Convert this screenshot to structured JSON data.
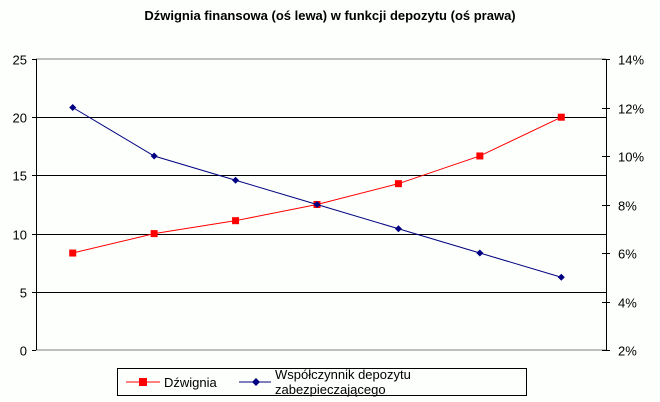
{
  "chart_data": {
    "type": "line",
    "title": "Dźwignia finansowa (oś lewa) w funkcji depozytu (oś prawa)",
    "xlabel": "",
    "ylabel": "",
    "x": [
      1,
      2,
      3,
      4,
      5,
      6,
      7
    ],
    "y_left": {
      "ylim": [
        0,
        25
      ],
      "ticks": [
        "0",
        "5",
        "10",
        "15",
        "20",
        "25"
      ]
    },
    "y_right": {
      "ylim": [
        0.02,
        0.14
      ],
      "ticks": [
        "2%",
        "4%",
        "6%",
        "8%",
        "10%",
        "12%",
        "14%"
      ]
    },
    "grid": "horizontal major (left axis)",
    "legend_position": "bottom",
    "series": [
      {
        "name": "Dźwignia",
        "axis": "left",
        "color": "#ff0000",
        "marker": "square",
        "values": [
          8.33,
          10.0,
          11.11,
          12.5,
          14.29,
          16.67,
          20.0
        ]
      },
      {
        "name": "Współczynnik depozytu zabezpieczającego",
        "axis": "right",
        "color": "#000080",
        "marker": "diamond",
        "values": [
          0.12,
          0.1,
          0.09,
          0.08,
          0.07,
          0.06,
          0.05
        ]
      }
    ]
  },
  "legend": {
    "items": [
      {
        "label": "Dźwignia"
      },
      {
        "label": "Współczynnik depozytu zabezpieczającego"
      }
    ]
  },
  "colors": {
    "leverage": "#ff0000",
    "deposit": "#000080",
    "background": "#fcfffc"
  }
}
